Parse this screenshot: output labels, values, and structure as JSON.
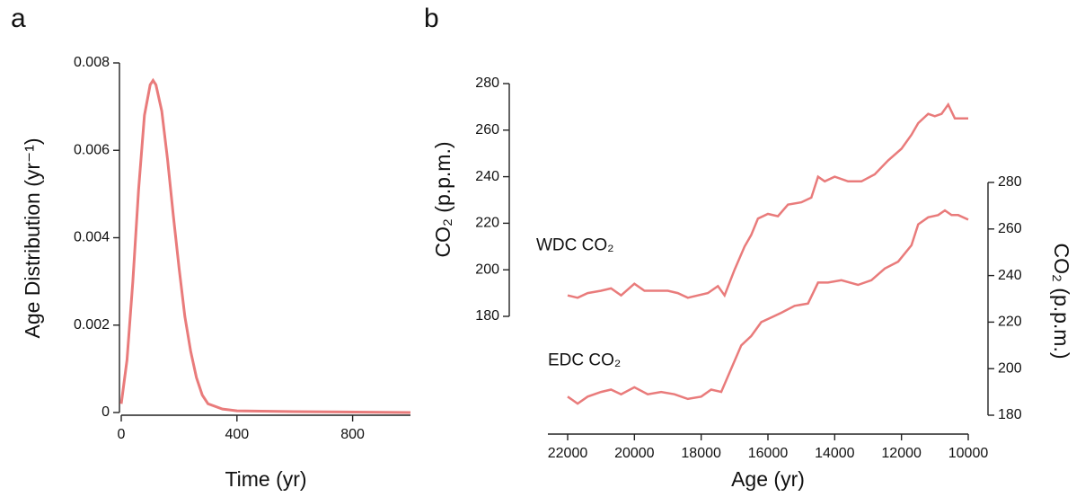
{
  "chart_data": [
    {
      "type": "line",
      "panel": "a",
      "xlabel": "Time (yr)",
      "ylabel": "Age Distribution (yr⁻¹)",
      "x": [
        0,
        20,
        40,
        60,
        80,
        100,
        110,
        120,
        140,
        160,
        180,
        200,
        220,
        240,
        260,
        280,
        300,
        350,
        400,
        600,
        1000
      ],
      "values": [
        0.0002,
        0.0012,
        0.003,
        0.0051,
        0.0068,
        0.0075,
        0.0076,
        0.0075,
        0.0069,
        0.0058,
        0.0045,
        0.0033,
        0.0022,
        0.0014,
        0.0008,
        0.0004,
        0.0002,
        8e-05,
        4e-05,
        2e-05,
        0
      ],
      "color": "#e97b7b",
      "xlim": [
        0,
        1000
      ],
      "xticks": [
        0,
        400,
        800
      ],
      "ylim": [
        0,
        0.008
      ],
      "yticks": [
        0,
        0.002,
        0.004,
        0.006,
        0.008
      ]
    },
    {
      "type": "line",
      "panel": "b",
      "xlabel": "Age (yr)",
      "ylabel": "CO₂ (p.p.m.)",
      "y2label": "CO₂ (p.p.m.)",
      "xlim": [
        22000,
        10000
      ],
      "xticks": [
        22000,
        20000,
        18000,
        16000,
        14000,
        12000,
        10000
      ],
      "ylim": [
        180,
        280
      ],
      "yticks": [
        180,
        200,
        220,
        240,
        260,
        280
      ],
      "y2lim": [
        180,
        280
      ],
      "y2ticks": [
        180,
        200,
        220,
        240,
        260,
        280
      ],
      "series": [
        {
          "name": "WDC CO₂",
          "color": "#e97b7b",
          "axis": "y",
          "x": [
            22000,
            21700,
            21400,
            21000,
            20700,
            20400,
            20000,
            19700,
            19300,
            19000,
            18700,
            18400,
            18100,
            17800,
            17500,
            17300,
            17000,
            16700,
            16500,
            16300,
            16000,
            15700,
            15400,
            15000,
            14700,
            14500,
            14300,
            14000,
            13600,
            13200,
            12800,
            12400,
            12000,
            11700,
            11500,
            11200,
            11000,
            10800,
            10600,
            10400,
            10000
          ],
          "values": [
            189,
            188,
            190,
            191,
            192,
            189,
            194,
            191,
            191,
            191,
            190,
            188,
            189,
            190,
            193,
            189,
            200,
            210,
            215,
            222,
            224,
            223,
            228,
            229,
            231,
            240,
            238,
            240,
            238,
            238,
            241,
            247,
            252,
            258,
            263,
            267,
            266,
            267,
            271,
            265,
            265
          ]
        },
        {
          "name": "EDC CO₂",
          "color": "#e97b7b",
          "axis": "y2",
          "x": [
            22000,
            21700,
            21400,
            21000,
            20700,
            20400,
            20000,
            19600,
            19200,
            18800,
            18400,
            18000,
            17700,
            17400,
            17100,
            16800,
            16500,
            16200,
            15900,
            15600,
            15200,
            14800,
            14500,
            14200,
            13800,
            13300,
            12900,
            12500,
            12100,
            11700,
            11500,
            11200,
            10900,
            10700,
            10500,
            10300,
            10000
          ],
          "values": [
            188,
            185,
            188,
            190,
            191,
            189,
            192,
            189,
            190,
            189,
            187,
            188,
            191,
            190,
            200,
            210,
            214,
            220,
            222,
            224,
            227,
            228,
            237,
            237,
            238,
            236,
            238,
            243,
            246,
            253,
            262,
            265,
            266,
            268,
            266,
            266,
            264
          ]
        }
      ]
    }
  ]
}
